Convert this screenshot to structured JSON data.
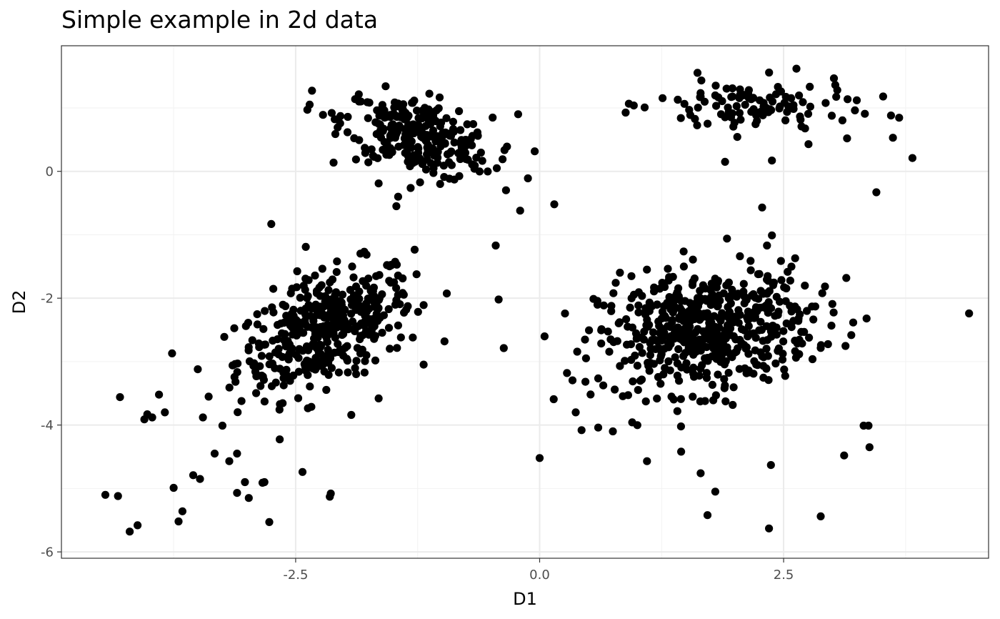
{
  "chart_data": {
    "type": "scatter",
    "title": "Simple example in 2d data",
    "xlabel": "D1",
    "ylabel": "D2",
    "xlim": [
      -4.9,
      4.6
    ],
    "ylim": [
      -6.1,
      1.98
    ],
    "grid": true,
    "x_ticks": [
      -2.5,
      0.0,
      2.5
    ],
    "x_tick_labels": [
      "-2.5",
      "0.0",
      "2.5"
    ],
    "y_ticks": [
      -6,
      -4,
      -2,
      0
    ],
    "y_tick_labels": [
      "-6",
      "-4",
      "-2",
      "0"
    ],
    "point_color": "#000000",
    "clusters": [
      {
        "center": [
          -2.2,
          -2.5
        ],
        "sd": [
          0.45,
          0.5
        ],
        "n": 420,
        "rho": 0.5
      },
      {
        "center": [
          -1.25,
          0.55
        ],
        "sd": [
          0.38,
          0.33
        ],
        "n": 280,
        "rho": -0.45
      },
      {
        "center": [
          1.7,
          -2.5
        ],
        "sd": [
          0.55,
          0.48
        ],
        "n": 560,
        "rho": 0.2
      },
      {
        "center": [
          2.2,
          1.0
        ],
        "sd": [
          0.5,
          0.22
        ],
        "n": 110,
        "rho": -0.1
      }
    ],
    "points": [
      [
        -4.45,
        -5.1
      ],
      [
        -4.32,
        -5.12
      ],
      [
        -4.2,
        -5.68
      ],
      [
        -4.12,
        -5.58
      ],
      [
        -4.05,
        -3.91
      ],
      [
        -4.02,
        -3.83
      ],
      [
        -3.97,
        -3.88
      ],
      [
        -3.9,
        -3.52
      ],
      [
        -3.84,
        -3.8
      ],
      [
        -4.3,
        -3.56
      ],
      [
        -3.75,
        -4.99
      ],
      [
        -3.7,
        -5.52
      ],
      [
        -3.66,
        -5.36
      ],
      [
        -3.55,
        -4.79
      ],
      [
        -3.48,
        -4.85
      ],
      [
        -3.45,
        -3.88
      ],
      [
        -3.33,
        -4.45
      ],
      [
        -3.25,
        -4.01
      ],
      [
        -3.18,
        -4.57
      ],
      [
        -3.1,
        -4.45
      ],
      [
        -3.1,
        -5.07
      ],
      [
        -3.02,
        -4.9
      ],
      [
        -2.98,
        -5.15
      ],
      [
        -2.84,
        -4.91
      ],
      [
        -2.82,
        -4.9
      ],
      [
        -2.77,
        -5.53
      ],
      [
        -2.75,
        -0.83
      ],
      [
        -2.43,
        -4.74
      ],
      [
        -2.15,
        -5.13
      ],
      [
        -2.14,
        -5.08
      ],
      [
        -1.93,
        -3.84
      ],
      [
        -1.65,
        -3.58
      ],
      [
        -1.47,
        -1.84
      ],
      [
        -1.3,
        -2.62
      ],
      [
        -1.45,
        -2.43
      ],
      [
        -2.38,
        0.97
      ],
      [
        -2.22,
        0.89
      ],
      [
        -1.65,
        -0.19
      ],
      [
        -1.45,
        -0.4
      ],
      [
        -0.45,
        -1.17
      ],
      [
        -0.42,
        -2.02
      ],
      [
        -0.12,
        -0.11
      ],
      [
        0.15,
        -0.52
      ],
      [
        0.0,
        -4.52
      ],
      [
        -0.22,
        0.9
      ],
      [
        -0.2,
        -0.62
      ],
      [
        -0.38,
        0.19
      ],
      [
        0.28,
        -3.18
      ],
      [
        0.37,
        -3.8
      ],
      [
        0.43,
        -4.08
      ],
      [
        0.6,
        -4.04
      ],
      [
        0.75,
        -4.1
      ],
      [
        1.1,
        -4.57
      ],
      [
        1.45,
        -4.42
      ],
      [
        1.65,
        -4.76
      ],
      [
        1.72,
        -5.42
      ],
      [
        1.8,
        -5.05
      ],
      [
        2.35,
        -5.63
      ],
      [
        2.37,
        -4.63
      ],
      [
        2.88,
        -5.44
      ],
      [
        3.12,
        -4.48
      ],
      [
        3.32,
        -4.01
      ],
      [
        3.38,
        -4.35
      ],
      [
        3.37,
        -4.01
      ],
      [
        3.35,
        -2.32
      ],
      [
        2.38,
        -1.01
      ],
      [
        2.28,
        -0.57
      ],
      [
        1.92,
        -1.06
      ],
      [
        4.4,
        -2.24
      ],
      [
        3.45,
        -0.33
      ],
      [
        3.82,
        0.21
      ],
      [
        3.62,
        0.53
      ],
      [
        3.52,
        1.18
      ],
      [
        3.6,
        0.88
      ],
      [
        3.15,
        0.52
      ],
      [
        2.38,
        0.17
      ],
      [
        1.9,
        0.15
      ],
      [
        3.25,
        1.12
      ],
      [
        3.05,
        1.28
      ]
    ]
  }
}
